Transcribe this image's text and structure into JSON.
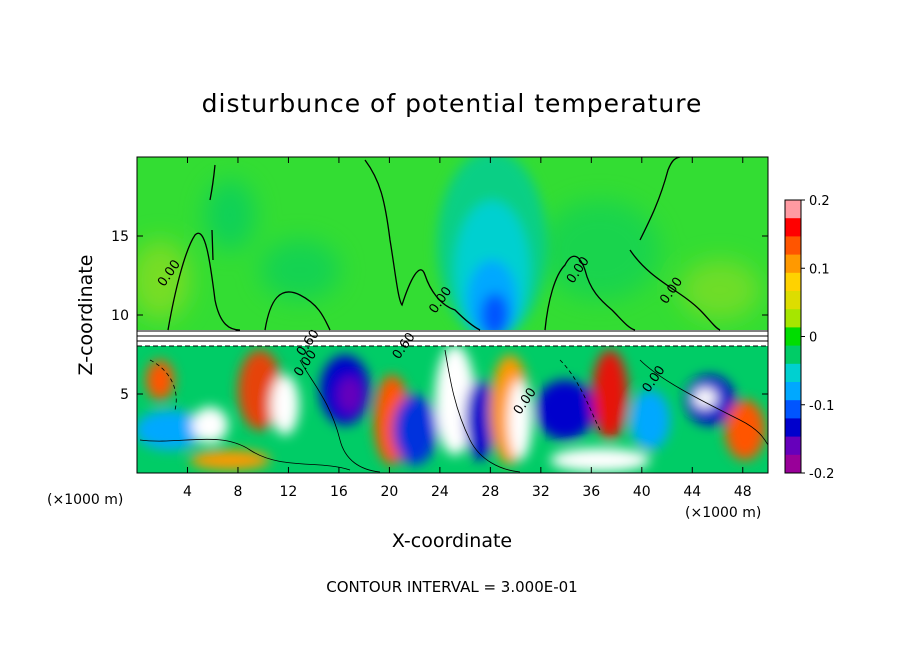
{
  "chart_data": {
    "type": "heatmap",
    "title": "disturbunce of potential temperature",
    "xlabel": "X-coordinate",
    "ylabel": "Z-coordinate",
    "x_unit": "(×1000 m)",
    "z_unit": "(×1000 m)",
    "xlim": [
      0,
      50
    ],
    "ylim": [
      0,
      20
    ],
    "x_ticks": [
      4,
      8,
      12,
      16,
      20,
      24,
      28,
      32,
      36,
      40,
      44,
      48
    ],
    "y_ticks": [
      5,
      10,
      15
    ],
    "colorbar": {
      "range": [
        -0.2,
        0.2
      ],
      "tick_values": [
        0.2,
        0.1,
        0,
        -0.1,
        -0.2
      ],
      "tick_labels": [
        "0.2",
        "0.1",
        "0",
        "-0.1",
        "-0.2"
      ],
      "colors": [
        "#ff9aa2",
        "#ff0000",
        "#ff5500",
        "#ff9900",
        "#ffd200",
        "#dddd00",
        "#a6e600",
        "#00dd00",
        "#00cc66",
        "#00d0d0",
        "#00a8ff",
        "#0055ff",
        "#0000cc",
        "#6600bb",
        "#990099"
      ]
    },
    "contour_labels": [
      {
        "text": "0.00",
        "x": 2.8,
        "z": 12.5
      },
      {
        "text": "0.00",
        "x": 24.3,
        "z": 10.8
      },
      {
        "text": "0.00",
        "x": 35.2,
        "z": 12.7
      },
      {
        "text": "0.00",
        "x": 42.6,
        "z": 11.4
      },
      {
        "text": "0.60",
        "x": 13.8,
        "z": 8.1
      },
      {
        "text": "0.60",
        "x": 21.4,
        "z": 7.9
      },
      {
        "text": "0.00",
        "x": 13.6,
        "z": 6.8
      },
      {
        "text": "0.00",
        "x": 41.2,
        "z": 5.8
      },
      {
        "text": "0.00",
        "x": 31.0,
        "z": 4.4
      }
    ],
    "contour_interval": "CONTOUR INTERVAL = 3.000E-01",
    "colors": {
      "upper_background": "#33dd33",
      "bubble_core": "#0066ff",
      "lower_background": "#00cc66",
      "frame": "#000000"
    }
  }
}
